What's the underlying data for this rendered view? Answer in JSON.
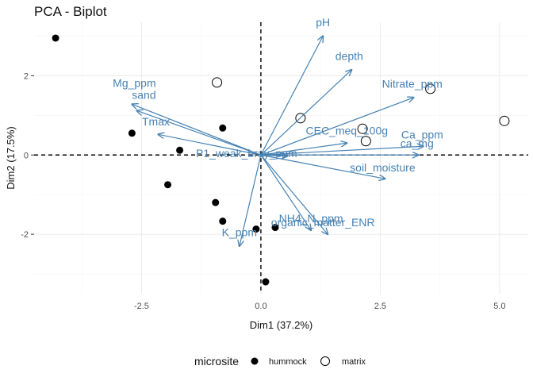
{
  "chart_data": {
    "type": "scatter",
    "title": "PCA - Biplot",
    "xlabel": "Dim1 (37.2%)",
    "ylabel": "Dim2 (17.5%)",
    "xlim": [
      -4.75,
      5.6
    ],
    "ylim": [
      -3.5,
      3.35
    ],
    "x_ticks": [
      -2.5,
      0.0,
      2.5,
      5.0
    ],
    "x_tick_labels": [
      "-2.5",
      "0.0",
      "2.5",
      "5.0"
    ],
    "y_ticks": [
      -2,
      0,
      2
    ],
    "y_tick_labels": [
      "-2",
      "0",
      "2"
    ],
    "grid": true,
    "legend": {
      "title": "microsite",
      "position": "bottom",
      "entries": [
        {
          "name": "hummock",
          "shape": "filled-circle"
        },
        {
          "name": "matrix",
          "shape": "open-circle"
        }
      ]
    },
    "colors": {
      "variables": "#4682b4",
      "points": "#000000"
    },
    "series": [
      {
        "name": "hummock",
        "points": [
          {
            "x": -4.3,
            "y": 2.95
          },
          {
            "x": -2.7,
            "y": 0.55
          },
          {
            "x": -1.7,
            "y": 0.12
          },
          {
            "x": -0.8,
            "y": 0.68
          },
          {
            "x": -1.95,
            "y": -0.75
          },
          {
            "x": -0.95,
            "y": -1.2
          },
          {
            "x": -0.8,
            "y": -1.67
          },
          {
            "x": -0.1,
            "y": -1.87
          },
          {
            "x": 0.3,
            "y": -1.83
          },
          {
            "x": 0.1,
            "y": -3.2
          }
        ]
      },
      {
        "name": "matrix",
        "points": [
          {
            "x": -0.92,
            "y": 1.83
          },
          {
            "x": 0.83,
            "y": 0.93
          },
          {
            "x": 2.13,
            "y": 0.66
          },
          {
            "x": 2.2,
            "y": 0.35
          },
          {
            "x": 3.55,
            "y": 1.67
          },
          {
            "x": 5.1,
            "y": 0.86
          }
        ]
      }
    ],
    "variables": [
      {
        "name": "pH",
        "x": 1.3,
        "y": 3.0,
        "lx": 1.3,
        "ly": 3.25
      },
      {
        "name": "depth",
        "x": 1.9,
        "y": 2.15,
        "lx": 1.85,
        "ly": 2.4
      },
      {
        "name": "Nitrate_ppm",
        "x": 3.2,
        "y": 1.45,
        "lx": 3.17,
        "ly": 1.7
      },
      {
        "name": "Mg_ppm",
        "x": -2.7,
        "y": 1.28,
        "lx": -2.65,
        "ly": 1.72
      },
      {
        "name": "sand",
        "x": -2.6,
        "y": 1.12,
        "lx": -2.45,
        "ly": 1.42
      },
      {
        "name": "Tmax",
        "x": -2.15,
        "y": 0.52,
        "lx": -2.2,
        "ly": 0.75
      },
      {
        "name": "CEC_meq_100g",
        "x": 1.8,
        "y": 0.3,
        "lx": 1.8,
        "ly": 0.52
      },
      {
        "name": "Ca_ppm",
        "x": 3.4,
        "y": 0.22,
        "lx": 3.38,
        "ly": 0.42
      },
      {
        "name": "ca_mg",
        "x": 3.3,
        "y": 0.0,
        "lx": 3.27,
        "ly": 0.2
      },
      {
        "name": "P1_weak_bray_ppm",
        "x": 0.55,
        "y": -0.03,
        "lx": -0.3,
        "ly": -0.05
      },
      {
        "name": "soil_moisture",
        "x": 2.6,
        "y": -0.6,
        "lx": 2.55,
        "ly": -0.42
      },
      {
        "name": "NH4_N_ppm",
        "x": 1.05,
        "y": -1.9,
        "lx": 1.05,
        "ly": -1.7
      },
      {
        "name": "organic_matter_ENR",
        "x": 1.4,
        "y": -2.0,
        "lx": 1.3,
        "ly": -1.8
      },
      {
        "name": "K_ppm",
        "x": -0.45,
        "y": -2.3,
        "lx": -0.45,
        "ly": -2.05
      }
    ]
  }
}
